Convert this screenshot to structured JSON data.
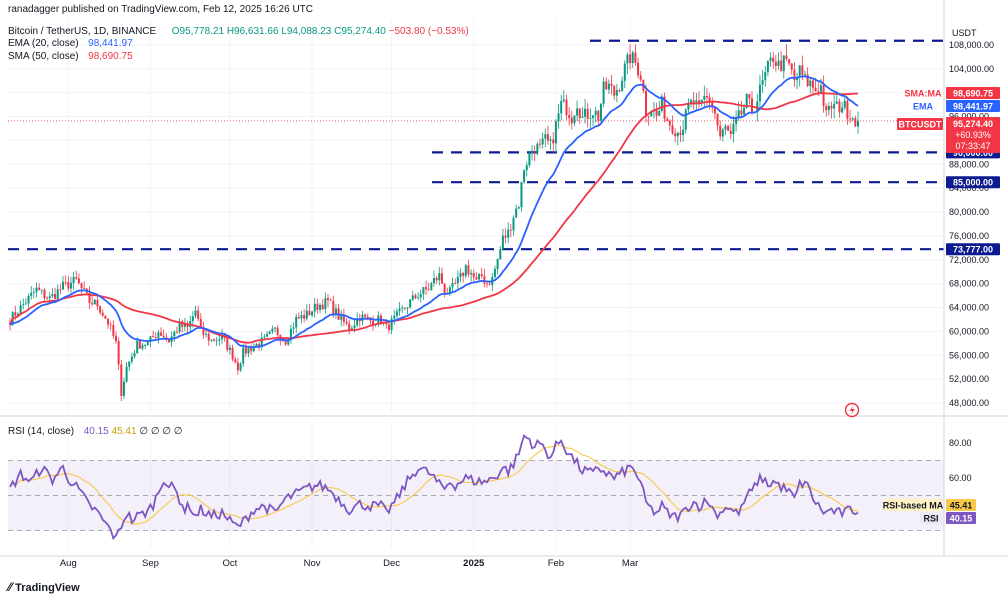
{
  "header": {
    "publisher": "ranadagger published on TradingView.com, Feb 12, 2025 16:26 UTC",
    "symbol": "Bitcoin / TetherUS, 1D, BINANCE",
    "open": "O95,778.21",
    "high": "H96,631.66",
    "low": "L94,088.23",
    "close": "C95,274.40",
    "change": "−503.80 (−0.53%)",
    "ema_label": "EMA (20, close)",
    "ema_value": "98,441.97",
    "sma_label": "SMA (50, close)",
    "sma_value": "98,690.75"
  },
  "rsi_header": {
    "label": "RSI (14, close)",
    "rsi": "40.15",
    "ma": "45.41",
    "extra": "∅ ∅ ∅ ∅"
  },
  "price_axis": {
    "currency": "USDT",
    "ticks": [
      "108,000.00",
      "104,000.00",
      "100,000.00",
      "96,000.00",
      "92,000.00",
      "88,000.00",
      "84,000.00",
      "80,000.00",
      "76,000.00",
      "72,000.00",
      "68,000.00",
      "64,000.00",
      "60,000.00",
      "56,000.00",
      "52,000.00",
      "48,000.00"
    ]
  },
  "price_labels": {
    "sma": {
      "tag": "SMA:MA",
      "value": "98,690.75",
      "color": "#f23645"
    },
    "ema": {
      "tag": "EMA",
      "value": "98,441.97",
      "color": "#2962ff"
    },
    "last": {
      "tag": "BTCUSDT",
      "value": "95,274.40",
      "change": "+60.93%",
      "countdown": "07:33:47",
      "color": "#f23645"
    }
  },
  "levels": [
    {
      "label": "90,000.00",
      "value": 90000
    },
    {
      "label": "85,000.00",
      "value": 85000
    },
    {
      "label": "73,777.00",
      "value": 73777
    }
  ],
  "rsi_axis": {
    "ticks": [
      "80.00",
      "60.00"
    ]
  },
  "rsi_labels": {
    "ma": {
      "tag": "RSI-based MA",
      "value": "45.41"
    },
    "rsi": {
      "tag": "RSI",
      "value": "40.15"
    }
  },
  "time_axis": {
    "ticks": [
      "Aug",
      "Sep",
      "Oct",
      "Nov",
      "Dec",
      "2025",
      "Feb",
      "Mar"
    ]
  },
  "branding": {
    "logo": "TradingView"
  },
  "colors": {
    "up": "#089981",
    "down": "#f23645",
    "ema": "#2962ff",
    "sma": "#f23645",
    "rsi": "#7e57c2",
    "rsi_ma": "#f7c948",
    "levels": "#0c1b8f"
  },
  "chart_data": {
    "type": "candlestick",
    "title": "Bitcoin / TetherUS, 1D, BINANCE",
    "ylabel": "USDT",
    "ylim": [
      46500,
      110500
    ],
    "x_ticks": [
      "Aug",
      "Sep",
      "Oct",
      "Nov",
      "Dec",
      "2025",
      "Feb",
      "Mar"
    ],
    "close_anchors": [
      [
        0,
        62000
      ],
      [
        5,
        64500
      ],
      [
        10,
        67000
      ],
      [
        15,
        65500
      ],
      [
        20,
        67500
      ],
      [
        25,
        68500
      ],
      [
        30,
        65000
      ],
      [
        33,
        64500
      ],
      [
        37,
        61500
      ],
      [
        40,
        58000
      ],
      [
        42,
        49800
      ],
      [
        44,
        54000
      ],
      [
        48,
        57800
      ],
      [
        52,
        58000
      ],
      [
        56,
        60000
      ],
      [
        60,
        58500
      ],
      [
        64,
        61000
      ],
      [
        67,
        60500
      ],
      [
        70,
        63500
      ],
      [
        72,
        60000
      ],
      [
        76,
        58500
      ],
      [
        80,
        59000
      ],
      [
        84,
        56000
      ],
      [
        86,
        54000
      ],
      [
        88,
        56500
      ],
      [
        92,
        57500
      ],
      [
        96,
        58500
      ],
      [
        100,
        60200
      ],
      [
        104,
        58500
      ],
      [
        108,
        62000
      ],
      [
        112,
        62800
      ],
      [
        116,
        64300
      ],
      [
        120,
        65000
      ],
      [
        124,
        62500
      ],
      [
        128,
        60500
      ],
      [
        132,
        62500
      ],
      [
        136,
        61800
      ],
      [
        140,
        62000
      ],
      [
        142,
        60500
      ],
      [
        146,
        62500
      ],
      [
        150,
        64500
      ],
      [
        154,
        66200
      ],
      [
        158,
        67200
      ],
      [
        160,
        68500
      ],
      [
        162,
        69300
      ],
      [
        164,
        67000
      ],
      [
        166,
        66500
      ],
      [
        168,
        67800
      ],
      [
        170,
        69000
      ],
      [
        172,
        70800
      ],
      [
        174,
        69800
      ],
      [
        176,
        68200
      ],
      [
        178,
        69300
      ],
      [
        180,
        68000
      ],
      [
        182,
        68800
      ],
      [
        184,
        72000
      ],
      [
        186,
        75500
      ],
      [
        188,
        76500
      ],
      [
        190,
        79500
      ],
      [
        192,
        81500
      ],
      [
        194,
        87500
      ],
      [
        196,
        89500
      ],
      [
        198,
        91000
      ],
      [
        200,
        90500
      ],
      [
        202,
        92000
      ],
      [
        204,
        91000
      ],
      [
        206,
        94500
      ],
      [
        208,
        98000
      ],
      [
        210,
        97500
      ],
      [
        212,
        96000
      ],
      [
        214,
        98500
      ],
      [
        216,
        95700
      ],
      [
        218,
        96500
      ],
      [
        220,
        97000
      ],
      [
        222,
        96000
      ],
      [
        224,
        100500
      ],
      [
        226,
        101000
      ],
      [
        228,
        99800
      ],
      [
        230,
        101500
      ],
      [
        232,
        104000
      ],
      [
        234,
        106000
      ],
      [
        236,
        105000
      ],
      [
        238,
        103000
      ],
      [
        240,
        97000
      ],
      [
        242,
        97500
      ],
      [
        244,
        96000
      ],
      [
        246,
        98000
      ],
      [
        248,
        95500
      ],
      [
        250,
        94500
      ],
      [
        252,
        93500
      ],
      [
        254,
        94500
      ],
      [
        256,
        97500
      ],
      [
        258,
        98500
      ],
      [
        260,
        97000
      ],
      [
        262,
        99000
      ],
      [
        264,
        99000
      ],
      [
        266,
        96500
      ],
      [
        268,
        92500
      ],
      [
        270,
        94000
      ],
      [
        272,
        92500
      ],
      [
        274,
        95000
      ],
      [
        276,
        96500
      ],
      [
        278,
        98500
      ],
      [
        280,
        97000
      ],
      [
        282,
        99000
      ],
      [
        284,
        101500
      ],
      [
        286,
        104000
      ],
      [
        288,
        106000
      ],
      [
        290,
        104500
      ],
      [
        292,
        105000
      ],
      [
        294,
        104500
      ],
      [
        296,
        102000
      ],
      [
        298,
        103500
      ],
      [
        300,
        102000
      ],
      [
        302,
        101500
      ],
      [
        304,
        100500
      ],
      [
        306,
        101000
      ],
      [
        308,
        96000
      ],
      [
        310,
        97800
      ],
      [
        312,
        97500
      ],
      [
        314,
        98000
      ],
      [
        316,
        97000
      ],
      [
        318,
        96000
      ],
      [
        320,
        95274
      ]
    ],
    "series": [
      {
        "name": "EMA (20, close)",
        "last": 98441.97
      },
      {
        "name": "SMA (50, close)",
        "last": 98690.75
      }
    ],
    "horizontal_levels": [
      90000,
      85000,
      73777
    ],
    "rsi": {
      "ylim": [
        20,
        92
      ],
      "overbought": 70,
      "oversold": 30,
      "middle": 50,
      "last_rsi": 40.15,
      "last_ma": 45.41,
      "anchors": [
        [
          0,
          54
        ],
        [
          4,
          62
        ],
        [
          8,
          58
        ],
        [
          12,
          66
        ],
        [
          16,
          59
        ],
        [
          20,
          66
        ],
        [
          22,
          60
        ],
        [
          26,
          53
        ],
        [
          30,
          44
        ],
        [
          32,
          42
        ],
        [
          36,
          34
        ],
        [
          38,
          30
        ],
        [
          40,
          25
        ],
        [
          42,
          33
        ],
        [
          44,
          40
        ],
        [
          46,
          36
        ],
        [
          48,
          38
        ],
        [
          52,
          41
        ],
        [
          54,
          45
        ],
        [
          56,
          52
        ],
        [
          58,
          60
        ],
        [
          60,
          55
        ],
        [
          62,
          54
        ],
        [
          64,
          48
        ],
        [
          66,
          42
        ],
        [
          68,
          44
        ],
        [
          70,
          38
        ],
        [
          72,
          42
        ],
        [
          76,
          38
        ],
        [
          80,
          40
        ],
        [
          84,
          34
        ],
        [
          86,
          32
        ],
        [
          88,
          35
        ],
        [
          92,
          42
        ],
        [
          96,
          44
        ],
        [
          100,
          40
        ],
        [
          104,
          48
        ],
        [
          108,
          51
        ],
        [
          112,
          54
        ],
        [
          116,
          56
        ],
        [
          120,
          54
        ],
        [
          124,
          48
        ],
        [
          128,
          42
        ],
        [
          132,
          45
        ],
        [
          136,
          44
        ],
        [
          140,
          44
        ],
        [
          142,
          40
        ],
        [
          146,
          48
        ],
        [
          150,
          58
        ],
        [
          154,
          66
        ],
        [
          158,
          63
        ],
        [
          160,
          60
        ],
        [
          162,
          56
        ],
        [
          164,
          54
        ],
        [
          166,
          58
        ],
        [
          168,
          56
        ],
        [
          172,
          60
        ],
        [
          176,
          58
        ],
        [
          180,
          58
        ],
        [
          184,
          62
        ],
        [
          186,
          66
        ],
        [
          188,
          64
        ],
        [
          190,
          68
        ],
        [
          192,
          74
        ],
        [
          194,
          84
        ],
        [
          196,
          82
        ],
        [
          198,
          78
        ],
        [
          200,
          80
        ],
        [
          202,
          76
        ],
        [
          204,
          72
        ],
        [
          206,
          78
        ],
        [
          208,
          82
        ],
        [
          210,
          76
        ],
        [
          212,
          72
        ],
        [
          214,
          68
        ],
        [
          216,
          64
        ],
        [
          218,
          64
        ],
        [
          220,
          62
        ],
        [
          222,
          66
        ],
        [
          224,
          64
        ],
        [
          226,
          62
        ],
        [
          228,
          60
        ],
        [
          230,
          62
        ],
        [
          232,
          64
        ],
        [
          234,
          66
        ],
        [
          236,
          64
        ],
        [
          238,
          56
        ],
        [
          240,
          46
        ],
        [
          242,
          42
        ],
        [
          244,
          40
        ],
        [
          246,
          44
        ],
        [
          248,
          40
        ],
        [
          250,
          38
        ],
        [
          252,
          38
        ],
        [
          254,
          40
        ],
        [
          256,
          44
        ],
        [
          258,
          46
        ],
        [
          260,
          44
        ],
        [
          262,
          46
        ],
        [
          264,
          46
        ],
        [
          266,
          40
        ],
        [
          268,
          40
        ],
        [
          270,
          44
        ],
        [
          272,
          42
        ],
        [
          274,
          40
        ],
        [
          276,
          42
        ],
        [
          278,
          50
        ],
        [
          280,
          52
        ],
        [
          282,
          58
        ],
        [
          284,
          60
        ],
        [
          286,
          56
        ],
        [
          288,
          58
        ],
        [
          290,
          56
        ],
        [
          292,
          54
        ],
        [
          294,
          52
        ],
        [
          296,
          48
        ],
        [
          298,
          56
        ],
        [
          300,
          58
        ],
        [
          302,
          52
        ],
        [
          304,
          46
        ],
        [
          306,
          42
        ],
        [
          308,
          40
        ],
        [
          310,
          42
        ],
        [
          312,
          40
        ],
        [
          314,
          40
        ],
        [
          316,
          41
        ],
        [
          318,
          42
        ],
        [
          320,
          40.15
        ]
      ]
    }
  }
}
